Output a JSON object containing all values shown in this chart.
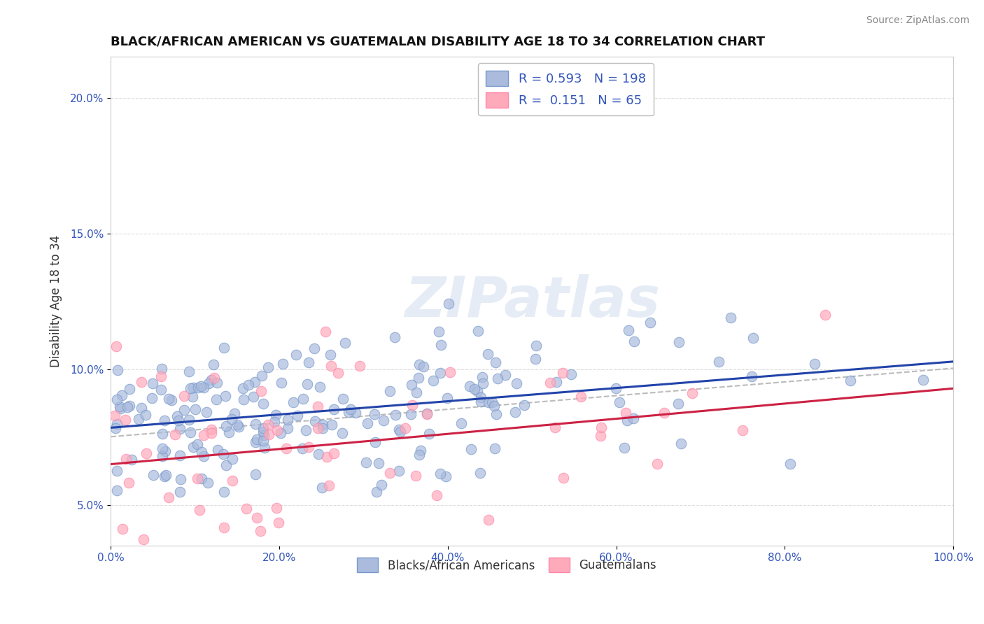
{
  "title": "BLACK/AFRICAN AMERICAN VS GUATEMALAN DISABILITY AGE 18 TO 34 CORRELATION CHART",
  "source": "Source: ZipAtlas.com",
  "ylabel": "Disability Age 18 to 34",
  "xlim": [
    0.0,
    1.0
  ],
  "ylim": [
    0.035,
    0.215
  ],
  "ytick_vals": [
    0.05,
    0.1,
    0.15,
    0.2
  ],
  "ytick_labels": [
    "5.0%",
    "10.0%",
    "15.0%",
    "20.0%"
  ],
  "xtick_vals": [
    0.0,
    0.2,
    0.4,
    0.6,
    0.8,
    1.0
  ],
  "xtick_labels": [
    "0.0%",
    "20.0%",
    "40.0%",
    "60.0%",
    "80.0%",
    "100.0%"
  ],
  "blue_R": 0.593,
  "blue_N": 198,
  "pink_R": 0.151,
  "pink_N": 65,
  "blue_color": "#AABBDD",
  "pink_color": "#FFAABB",
  "blue_edge_color": "#7799CC",
  "pink_edge_color": "#FF88AA",
  "blue_line_color": "#2244AA",
  "pink_line_color": "#CC2244",
  "dash_line_color": "#BBBBBB",
  "background_color": "#FFFFFF",
  "grid_color": "#DDDDDD",
  "legend_labels": [
    "Blacks/African Americans",
    "Guatemalans"
  ],
  "watermark_color": "#D0DDEE",
  "title_fontsize": 13,
  "source_fontsize": 10,
  "tick_fontsize": 11,
  "ylabel_fontsize": 12
}
